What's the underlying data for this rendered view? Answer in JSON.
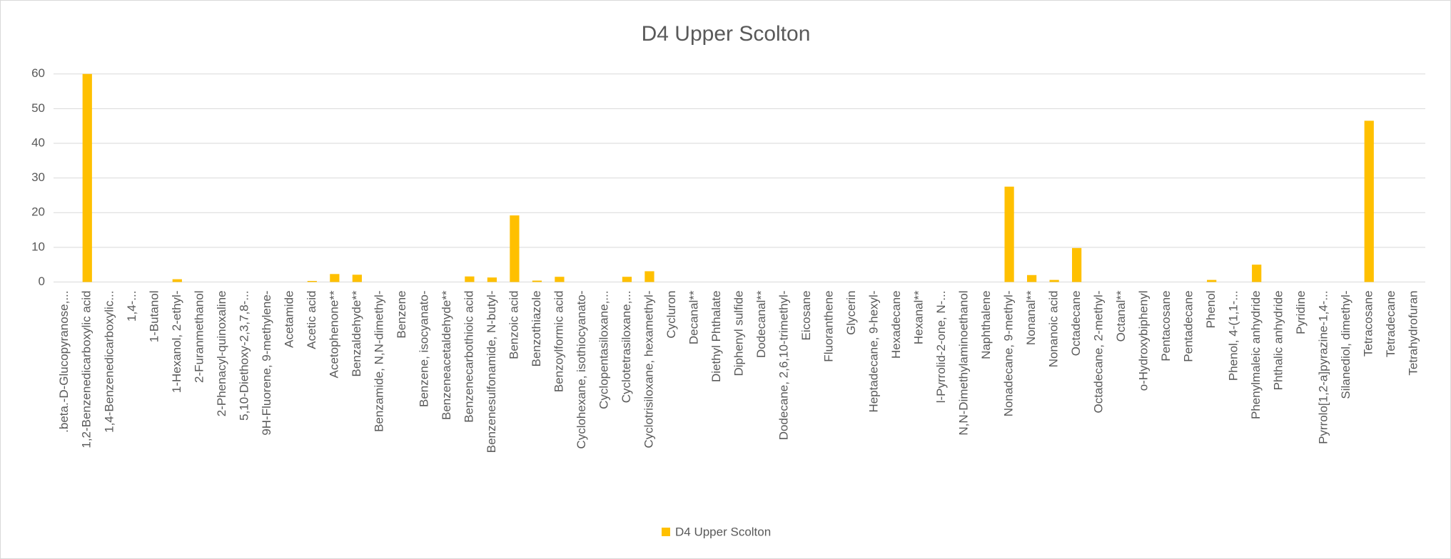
{
  "chart_data": {
    "type": "bar",
    "title": "D4 Upper Scolton",
    "categories": [
      ".beta.-D-Glucopyranose,...",
      "1,2-Benzenedicarboxylic acid",
      "1,4-Benzenedicarboxylic...",
      "1,4-...",
      "1-Butanol",
      "1-Hexanol, 2-ethyl-",
      "2-Furanmethanol",
      "2-Phenacyl-quinoxaline",
      "5,10-Diethoxy-2,3,7,8-...",
      "9H-Fluorene, 9-methylene-",
      "Acetamide",
      "Acetic acid",
      "Acetophenone**",
      "Benzaldehyde**",
      "Benzamide, N,N-dimethyl-",
      "Benzene",
      "Benzene, isocyanato-",
      "Benzeneacetaldehyde**",
      "Benzenecarbothioic acid",
      "Benzenesulfonamide, N-butyl-",
      "Benzoic acid",
      "Benzothiazole",
      "Benzoylformic acid",
      "Cyclohexane, isothiocyanato-",
      "Cyclopentasiloxane,...",
      "Cyclotetrasiloxane,...",
      "Cyclotrisiloxane, hexamethyl-",
      "Cycluron",
      "Decanal**",
      "Diethyl Phthalate",
      "Diphenyl sulfide",
      "Dodecanal**",
      "Dodecane, 2,6,10-trimethyl-",
      "Eicosane",
      "Fluoranthene",
      "Glycerin",
      "Heptadecane, 9-hexyl-",
      "Hexadecane",
      "Hexanal**",
      "l-Pyrrolid-2-one, N-...",
      "N,N-Dimethylaminoethanol",
      "Naphthalene",
      "Nonadecane, 9-methyl-",
      "Nonanal**",
      "Nonanoic acid",
      "Octadecane",
      "Octadecane, 2-methyl-",
      "Octanal**",
      "o-Hydroxybiphenyl",
      "Pentacosane",
      "Pentadecane",
      "Phenol",
      "Phenol, 4-(1,1-...",
      "Phenylmaleic anhydride",
      "Phthalic anhydride",
      "Pyridine",
      "Pyrrolo[1,2-a]pyrazine-1,4-...",
      "Silanediol, dimethyl-",
      "Tetracosane",
      "Tetradecane",
      "Tetrahydrofuran"
    ],
    "series": [
      {
        "name": "D4 Upper Scolton",
        "color": "#ffc000",
        "values": [
          0,
          60,
          0,
          0,
          0,
          0.8,
          0,
          0,
          0,
          0,
          0,
          0.3,
          2.3,
          2.1,
          0,
          0,
          0,
          0,
          1.6,
          1.3,
          19.2,
          0.4,
          1.5,
          0,
          0,
          1.5,
          3.1,
          0,
          0,
          0,
          0,
          0,
          0,
          0,
          0,
          0,
          0,
          0,
          0,
          0,
          0,
          0,
          27.5,
          2,
          0.6,
          9.8,
          0,
          0,
          0,
          0,
          0,
          0.6,
          0,
          5,
          0,
          0,
          0,
          0,
          46.5,
          0,
          0
        ]
      }
    ],
    "ylim": [
      0,
      60
    ],
    "yticks": [
      0,
      10,
      20,
      30,
      40,
      50,
      60
    ],
    "grid": true,
    "legend": "bottom"
  }
}
